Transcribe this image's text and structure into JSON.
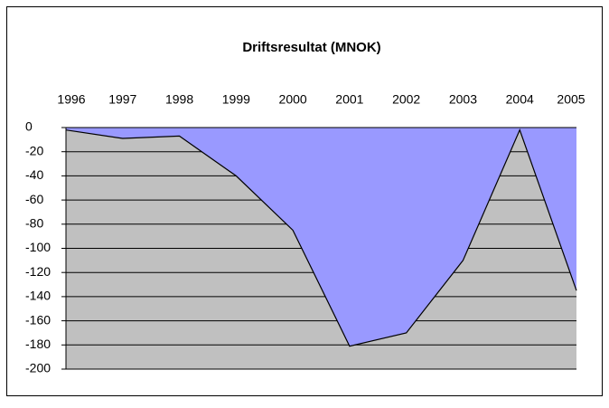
{
  "chart_data": {
    "type": "area",
    "title": "Driftsresultat (MNOK)",
    "categories": [
      "1996",
      "1997",
      "1998",
      "1999",
      "2000",
      "2001",
      "2002",
      "2003",
      "2004",
      "2005"
    ],
    "values": [
      -2,
      -9,
      -7,
      -40,
      -85,
      -181,
      -170,
      -110,
      -2,
      -135
    ],
    "color": "#9999ff",
    "plot_background": "#c0c0c0",
    "ylim": [
      -200,
      0
    ],
    "yticks": [
      0,
      -20,
      -40,
      -60,
      -80,
      -100,
      -120,
      -140,
      -160,
      -180,
      -200
    ],
    "grid": true
  }
}
